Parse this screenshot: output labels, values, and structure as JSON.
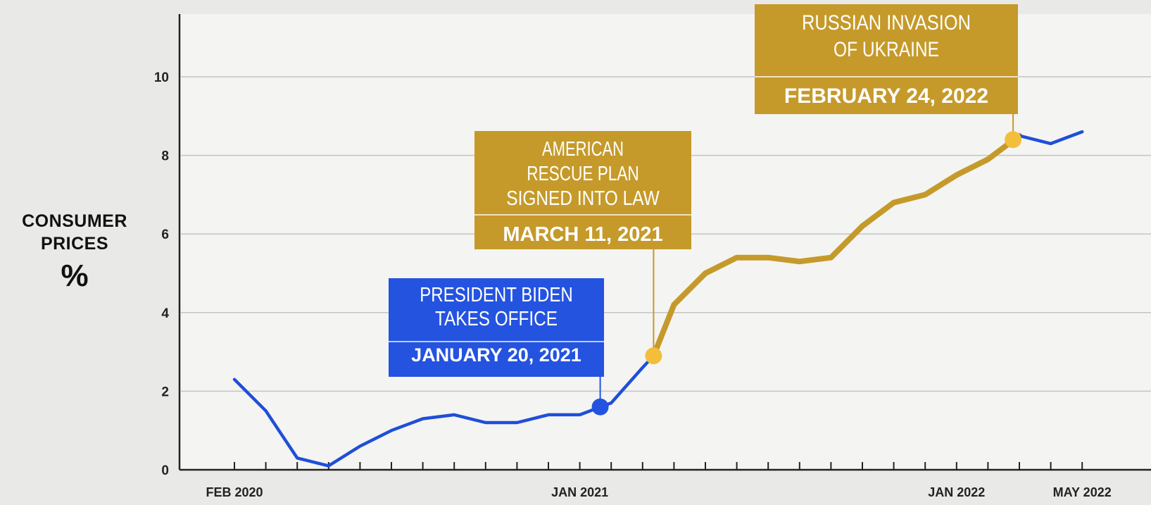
{
  "chart_data": {
    "type": "line",
    "ylabel_lines": [
      "CONSUMER",
      "PRICES"
    ],
    "ylabel_unit": "%",
    "ylim": [
      0,
      11.5
    ],
    "y_ticks": [
      0,
      2,
      4,
      6,
      8,
      10
    ],
    "grid": true,
    "x_tick_labels": [
      {
        "index": 0,
        "label": "FEB 2020"
      },
      {
        "index": 11,
        "label": "JAN 2021"
      },
      {
        "index": 23,
        "label": "JAN 2022"
      },
      {
        "index": 27,
        "label": "MAY 2022"
      }
    ],
    "series": [
      {
        "x": [
          "2020-02",
          "2020-03",
          "2020-04",
          "2020-05",
          "2020-06",
          "2020-07",
          "2020-08",
          "2020-09",
          "2020-10",
          "2020-11",
          "2020-12",
          "2021-01",
          "2021-02",
          "2021-03",
          "2021-04",
          "2021-05",
          "2021-06",
          "2021-07",
          "2021-08",
          "2021-09",
          "2021-10",
          "2021-11",
          "2021-12",
          "2022-01",
          "2022-02",
          "2022-03",
          "2022-04",
          "2022-05"
        ],
        "values": [
          2.3,
          1.5,
          0.3,
          0.1,
          0.6,
          1.0,
          1.3,
          1.4,
          1.2,
          1.2,
          1.4,
          1.4,
          1.7,
          2.6,
          4.2,
          5.0,
          5.4,
          5.4,
          5.3,
          5.4,
          6.2,
          6.8,
          7.0,
          7.5,
          7.9,
          8.5,
          8.3,
          8.6
        ]
      }
    ],
    "colors": {
      "before": "#1f4fd8",
      "after": "#c59a2a",
      "marker": "#f3be3c",
      "grid": "#c4c4c4",
      "axis": "#222222"
    },
    "annotations": [
      {
        "color": "#2453e0",
        "lines": [
          "PRESIDENT BIDEN",
          "TAKES OFFICE"
        ],
        "date": "JANUARY 20, 2021",
        "point": {
          "x": 11.65,
          "y": 1.6
        }
      },
      {
        "color": "#c59a2a",
        "lines": [
          "AMERICAN",
          "RESCUE PLAN",
          "SIGNED INTO LAW"
        ],
        "date": "MARCH 11, 2021",
        "point": {
          "x": 13.35,
          "y": 2.9
        }
      },
      {
        "color": "#c59a2a",
        "lines": [
          "RUSSIAN INVASION",
          "OF UKRAINE"
        ],
        "date": "FEBRUARY 24, 2022",
        "point": {
          "x": 24.8,
          "y": 8.4
        }
      }
    ]
  }
}
